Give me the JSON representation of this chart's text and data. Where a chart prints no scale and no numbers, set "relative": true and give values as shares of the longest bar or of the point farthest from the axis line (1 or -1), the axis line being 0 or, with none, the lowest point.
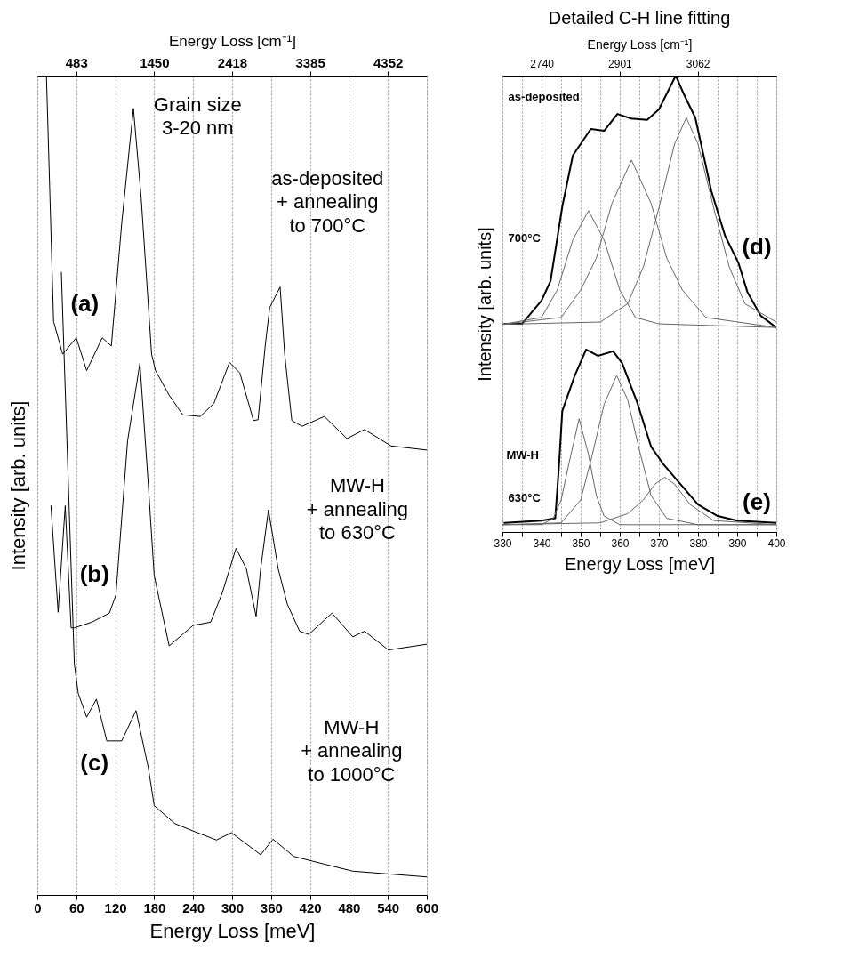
{
  "chart_data": [
    {
      "type": "line",
      "relative": true,
      "xlabel": "Energy Loss [meV]",
      "ylabel": "Intensity [arb. units]",
      "x2label": "Energy Loss [cm⁻¹]",
      "xlim": [
        0,
        600
      ],
      "xticks": [
        0,
        60,
        120,
        180,
        240,
        300,
        360,
        420,
        480,
        540,
        600
      ],
      "x2lim": [
        0,
        4836
      ],
      "x2ticks": [
        483,
        1450,
        2418,
        3385,
        4352
      ],
      "grid": "x",
      "series": [
        {
          "color": "#000000",
          "x": [
            14,
            25,
            39,
            60,
            76,
            100,
            114,
            130,
            148,
            160,
            176,
            182,
            203,
            224,
            251,
            272,
            296,
            312,
            333,
            340,
            351,
            358,
            374,
            381,
            392,
            408,
            442,
            477,
            504,
            545,
            600
          ],
          "values": [
            1.0,
            0.7,
            0.66,
            0.68,
            0.64,
            0.68,
            0.67,
            0.82,
            0.96,
            0.85,
            0.66,
            0.64,
            0.61,
            0.586,
            0.584,
            0.6,
            0.65,
            0.637,
            0.579,
            0.58,
            0.67,
            0.717,
            0.742,
            0.66,
            0.579,
            0.572,
            0.584,
            0.557,
            0.568,
            0.548,
            0.543
          ]
        },
        {
          "color": "#000000",
          "x": [
            21,
            32,
            43,
            52,
            57,
            84,
            111,
            121,
            139,
            158,
            171,
            180,
            203,
            240,
            267,
            285,
            306,
            322,
            337,
            344,
            356,
            371,
            385,
            404,
            418,
            454,
            486,
            504,
            541,
            600
          ],
          "values": [
            0.475,
            0.345,
            0.475,
            0.326,
            0.326,
            0.333,
            0.344,
            0.366,
            0.554,
            0.649,
            0.5,
            0.39,
            0.304,
            0.329,
            0.333,
            0.369,
            0.423,
            0.398,
            0.34,
            0.398,
            0.47,
            0.398,
            0.355,
            0.322,
            0.318,
            0.344,
            0.315,
            0.322,
            0.299,
            0.306
          ]
        },
        {
          "color": "#000000",
          "x": [
            37,
            57,
            63,
            76,
            91,
            107,
            130,
            152,
            171,
            180,
            212,
            240,
            276,
            299,
            344,
            363,
            395,
            440,
            486,
            600
          ],
          "values": [
            0.76,
            0.282,
            0.246,
            0.217,
            0.239,
            0.188,
            0.188,
            0.225,
            0.155,
            0.109,
            0.087,
            0.078,
            0.067,
            0.076,
            0.049,
            0.068,
            0.047,
            0.038,
            0.029,
            0.022
          ]
        }
      ],
      "annotations": [
        "Grain size\n3-20 nm",
        "as-deposited\n+ annealing\nto 700°C",
        "(a)",
        "MW-H\n+ annealing\nto 630°C",
        "(b)",
        "MW-H\n+ annealing\nto 1000°C",
        "(c)"
      ]
    },
    {
      "type": "line",
      "relative": true,
      "title": "Detailed C-H line fitting",
      "xlabel": "Energy Loss [meV]",
      "ylabel": "Intensity [arb. units]",
      "x2label": "Energy Loss [cm⁻¹]",
      "xlim": [
        330,
        400
      ],
      "xticks": [
        330,
        {
          "value": 335,
          "label": null
        },
        340,
        {
          "value": 345,
          "label": null
        },
        350,
        {
          "value": 355,
          "label": null
        },
        360,
        {
          "value": 365,
          "label": null
        },
        370,
        {
          "value": 375,
          "label": null
        },
        380,
        {
          "value": 385,
          "label": null
        },
        390,
        {
          "value": 395,
          "label": null
        },
        400
      ],
      "x2lim": [
        2659,
        3224
      ],
      "x2ticks": [
        2740,
        2901,
        3062
      ],
      "grid": "x",
      "series": [
        {
          "color": "#000000",
          "x": [
            330.5,
            335,
            340,
            342.3,
            345.3,
            348,
            352.6,
            356,
            359.4,
            362.9,
            367,
            370,
            374.3,
            376.5,
            379.3,
            383.4,
            386.9,
            390.3,
            392.6,
            396,
            400
          ],
          "values": [
            0.456,
            0.456,
            0.507,
            0.55,
            0.713,
            0.825,
            0.883,
            0.879,
            0.916,
            0.906,
            0.903,
            0.926,
            1.0,
            0.957,
            0.908,
            0.747,
            0.649,
            0.59,
            0.526,
            0.474,
            0.448
          ]
        },
        {
          "color": "#666666",
          "x": [
            330,
            340,
            344,
            348,
            352,
            356,
            360,
            364,
            370,
            400
          ],
          "values": [
            0.455,
            0.47,
            0.53,
            0.64,
            0.704,
            0.64,
            0.53,
            0.47,
            0.456,
            0.448
          ]
        },
        {
          "color": "#666666",
          "x": [
            330,
            345,
            350,
            354,
            358,
            363,
            368,
            372,
            376,
            382,
            400
          ],
          "values": [
            0.455,
            0.47,
            0.53,
            0.6,
            0.72,
            0.815,
            0.72,
            0.6,
            0.53,
            0.47,
            0.448
          ]
        },
        {
          "color": "#666666",
          "x": [
            330,
            355,
            362,
            366,
            370,
            374,
            377,
            380,
            384,
            388,
            392,
            400
          ],
          "values": [
            0.455,
            0.46,
            0.5,
            0.58,
            0.71,
            0.85,
            0.908,
            0.85,
            0.71,
            0.58,
            0.5,
            0.46
          ]
        },
        {
          "color": "#000000",
          "x": [
            330.5,
            340,
            343.5,
            344.5,
            345.3,
            348.5,
            351.4,
            354.4,
            358.3,
            360.6,
            364.4,
            368,
            371,
            375,
            380,
            385,
            390,
            400
          ],
          "values": [
            0.02,
            0.025,
            0.03,
            0.15,
            0.265,
            0.343,
            0.4,
            0.386,
            0.396,
            0.37,
            0.285,
            0.187,
            0.15,
            0.11,
            0.06,
            0.035,
            0.025,
            0.02
          ]
        },
        {
          "color": "#666666",
          "x": [
            330,
            340,
            343,
            345,
            347,
            349.6,
            352,
            354,
            356,
            360,
            400
          ],
          "values": [
            0.016,
            0.016,
            0.03,
            0.07,
            0.15,
            0.248,
            0.17,
            0.08,
            0.035,
            0.016,
            0.016
          ]
        },
        {
          "color": "#666666",
          "x": [
            330,
            345,
            350,
            353,
            356,
            359.2,
            362,
            365,
            368,
            372,
            380,
            400
          ],
          "values": [
            0.016,
            0.02,
            0.07,
            0.17,
            0.28,
            0.343,
            0.29,
            0.18,
            0.08,
            0.03,
            0.016,
            0.016
          ]
        },
        {
          "color": "#666666",
          "x": [
            330,
            355,
            362,
            366,
            369,
            371.5,
            374,
            378,
            384,
            400
          ],
          "values": [
            0.016,
            0.02,
            0.04,
            0.07,
            0.105,
            0.12,
            0.105,
            0.06,
            0.025,
            0.016
          ]
        }
      ],
      "annotations": [
        "as-deposited",
        "700°C",
        "(d)",
        "MW-H",
        "630°C",
        "(e)"
      ]
    }
  ]
}
